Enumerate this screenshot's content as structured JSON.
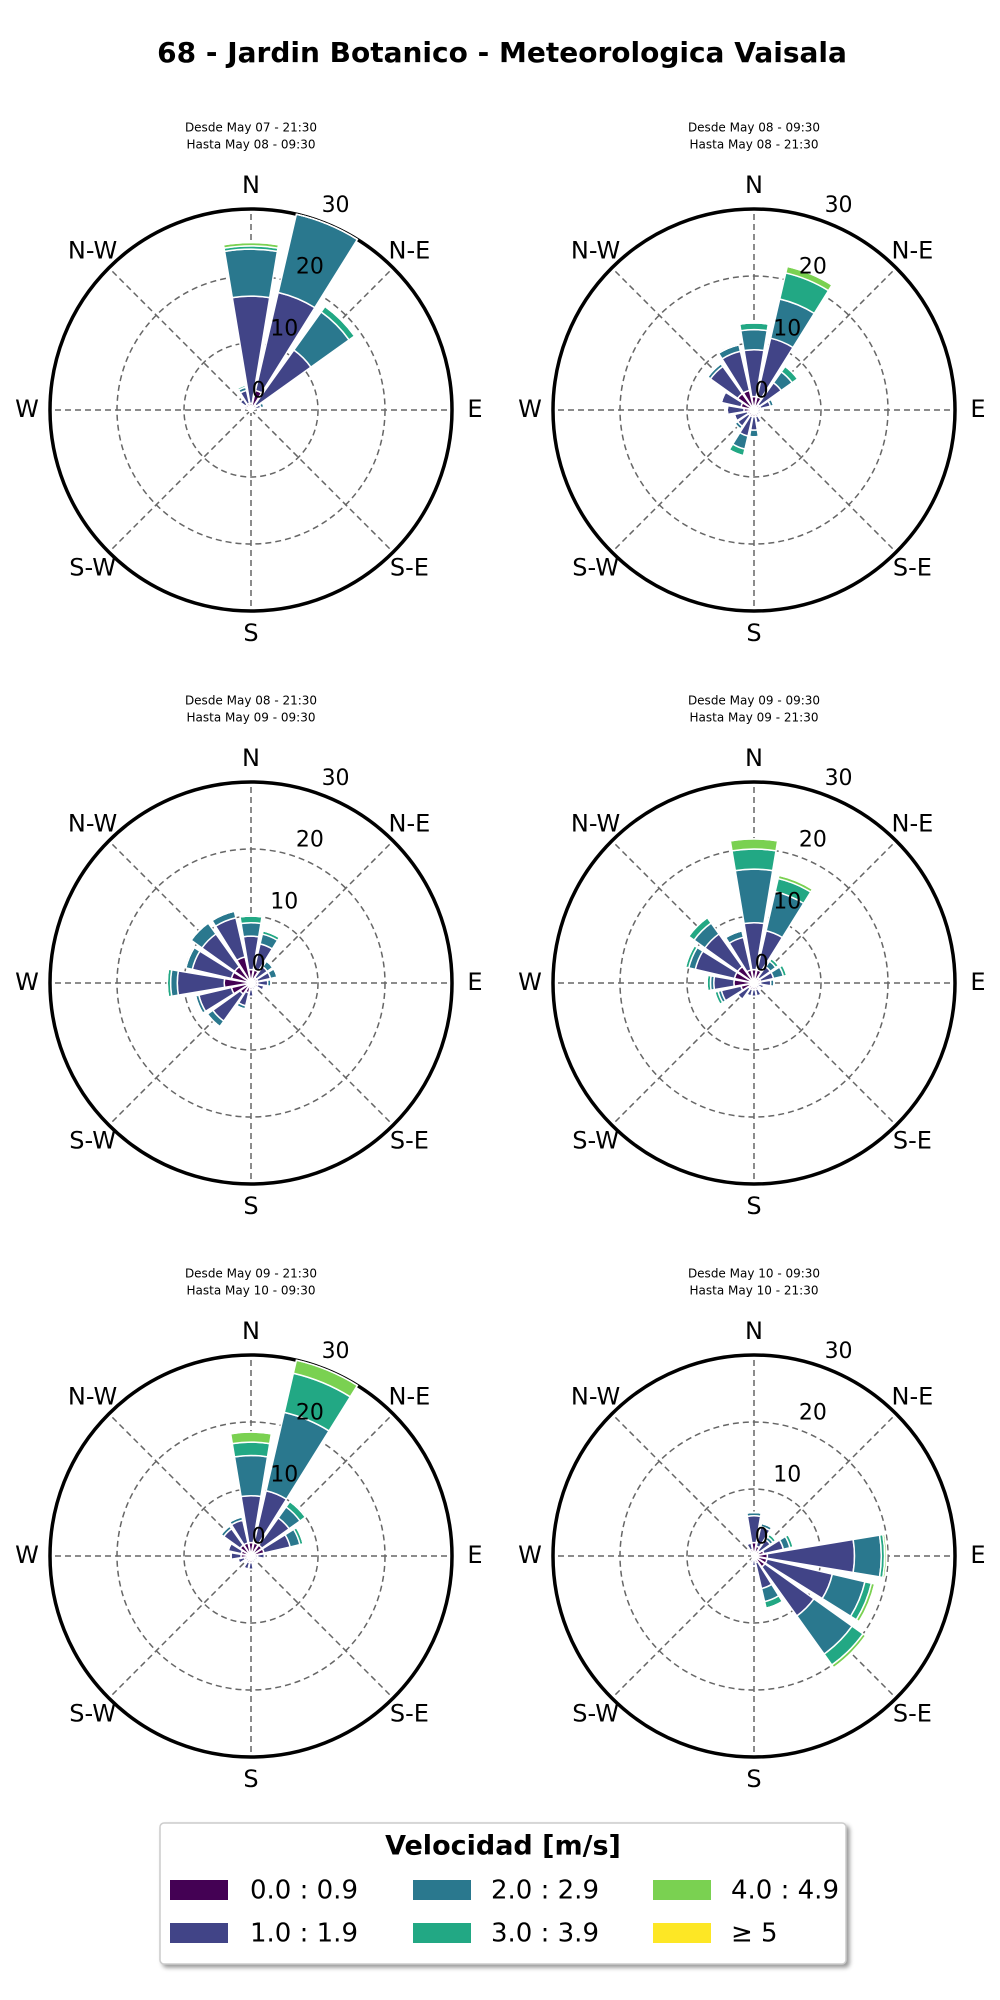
{
  "title": "68 - Jardin Botanico - Meteorologica Vaisala",
  "legend": {
    "title": "Velocidad [m/s]",
    "items": [
      {
        "name": "0.0 : 0.9",
        "color": "#440154"
      },
      {
        "name": "1.0 : 1.9",
        "color": "#414487"
      },
      {
        "name": "2.0 : 2.9",
        "color": "#2a788e"
      },
      {
        "name": "3.0 : 3.9",
        "color": "#22a884"
      },
      {
        "name": "4.0 : 4.9",
        "color": "#7ad151"
      },
      {
        "name": "≥ 5",
        "color": "#fde725"
      }
    ]
  },
  "chart_data": [
    {
      "type": "windrose",
      "subtitle": [
        "Desde May 07 - 21:30",
        "Hasta May 08 - 09:30"
      ],
      "direction_labels": [
        "N",
        "N-E",
        "E",
        "S-E",
        "S",
        "S-W",
        "W",
        "N-W"
      ],
      "rlim": [
        0,
        30
      ],
      "rticks": [
        0,
        10,
        20,
        30
      ],
      "series": [
        {
          "values": [
            1,
            3,
            1,
            0.5,
            0.3,
            0.3,
            0.3,
            0.3,
            0.3,
            0.3,
            0.3,
            0.3,
            0.3,
            0.5,
            1,
            1
          ]
        },
        {
          "values": [
            16,
            15,
            10,
            1,
            0,
            0,
            0,
            0,
            0,
            0,
            0,
            0,
            0,
            0.5,
            1,
            2
          ]
        },
        {
          "values": [
            7,
            12,
            7,
            0.5,
            0,
            0,
            0,
            0,
            0,
            0,
            0,
            0,
            0,
            0,
            0,
            0.5
          ]
        },
        {
          "values": [
            0.5,
            0,
            1,
            0,
            0,
            0,
            0,
            0,
            0,
            0,
            0,
            0,
            0,
            0,
            0,
            0.3
          ]
        },
        {
          "values": [
            0.5,
            0,
            0,
            0,
            0,
            0,
            0,
            0,
            0,
            0,
            0,
            0,
            0,
            0,
            0,
            0
          ]
        },
        {
          "values": [
            0,
            0,
            0,
            0,
            0,
            0,
            0,
            0,
            0,
            0,
            0,
            0,
            0,
            0,
            0,
            0
          ]
        }
      ]
    },
    {
      "type": "windrose",
      "subtitle": [
        "Desde May 08 - 09:30",
        "Hasta May 08 - 21:30"
      ],
      "direction_labels": [
        "N",
        "N-E",
        "E",
        "S-E",
        "S",
        "S-W",
        "W",
        "N-W"
      ],
      "rlim": [
        0,
        30
      ],
      "rticks": [
        0,
        10,
        20,
        30
      ],
      "series": [
        {
          "values": [
            2,
            2,
            1,
            1,
            0.5,
            0.5,
            0.5,
            1,
            1,
            1,
            1,
            1,
            1.5,
            2,
            3,
            3
          ]
        },
        {
          "values": [
            7,
            9,
            4,
            1.5,
            0.5,
            0.5,
            0.5,
            1,
            2,
            3,
            2,
            2,
            2.5,
            3,
            5,
            6
          ]
        },
        {
          "values": [
            3,
            6,
            2,
            0.5,
            0,
            0,
            0,
            0,
            1,
            2,
            0.5,
            0,
            0,
            0,
            0.5,
            1
          ]
        },
        {
          "values": [
            1,
            4,
            1,
            0,
            0,
            0,
            0,
            0,
            0,
            1,
            0,
            0,
            0,
            0,
            0,
            0
          ]
        },
        {
          "values": [
            0,
            1,
            0,
            0,
            0,
            0,
            0,
            0,
            0,
            0,
            0,
            0,
            0,
            0,
            0,
            0
          ]
        },
        {
          "values": [
            0,
            0,
            0,
            0,
            0,
            0,
            0,
            0,
            0,
            0,
            0,
            0,
            0,
            0,
            0,
            0
          ]
        }
      ]
    },
    {
      "type": "windrose",
      "subtitle": [
        "Desde May 08 - 21:30",
        "Hasta May 09 - 09:30"
      ],
      "direction_labels": [
        "N",
        "N-E",
        "E",
        "S-E",
        "S",
        "S-W",
        "W",
        "N-W"
      ],
      "rlim": [
        0,
        30
      ],
      "rticks": [
        0,
        10,
        20,
        30
      ],
      "series": [
        {
          "values": [
            2,
            2,
            1,
            1,
            1,
            1,
            0.5,
            0.5,
            1,
            1.5,
            2,
            3,
            4,
            3,
            3,
            4
          ]
        },
        {
          "values": [
            5,
            4,
            2,
            2,
            1.5,
            1,
            0.5,
            0.5,
            1,
            2,
            5,
            5,
            7,
            6,
            6,
            6
          ]
        },
        {
          "values": [
            2,
            1.5,
            1,
            1,
            0.5,
            0,
            0,
            0,
            0,
            0.5,
            1,
            0.5,
            1,
            1,
            2,
            1
          ]
        },
        {
          "values": [
            1,
            0.5,
            0,
            0,
            0,
            0,
            0,
            0,
            0,
            0,
            0,
            0,
            0.5,
            0,
            0,
            0
          ]
        },
        {
          "values": [
            0,
            0,
            0,
            0,
            0,
            0,
            0,
            0,
            0,
            0,
            0,
            0,
            0,
            0,
            0,
            0
          ]
        },
        {
          "values": [
            0,
            0,
            0,
            0,
            0,
            0,
            0,
            0,
            0,
            0,
            0,
            0,
            0,
            0,
            0,
            0
          ]
        }
      ]
    },
    {
      "type": "windrose",
      "subtitle": [
        "Desde May 09 - 09:30",
        "Hasta May 09 - 21:30"
      ],
      "direction_labels": [
        "N",
        "N-E",
        "E",
        "S-E",
        "S",
        "S-W",
        "W",
        "N-W"
      ],
      "rlim": [
        0,
        30
      ],
      "rticks": [
        0,
        10,
        20,
        30
      ],
      "series": [
        {
          "values": [
            2,
            2,
            1,
            1,
            1,
            0.5,
            0.5,
            1,
            1,
            1,
            1,
            2,
            3,
            3,
            3,
            2
          ]
        },
        {
          "values": [
            7,
            6,
            2,
            2,
            1.5,
            1,
            0.5,
            1,
            1,
            1,
            2,
            3,
            3,
            6,
            6,
            5
          ]
        },
        {
          "values": [
            8,
            6,
            1,
            1.5,
            0.5,
            0,
            0,
            0,
            0,
            0,
            0,
            0.5,
            0.5,
            1,
            2,
            1
          ]
        },
        {
          "values": [
            3,
            2,
            0.5,
            0.5,
            0,
            0,
            0,
            0,
            0,
            0,
            0,
            0.5,
            0.5,
            0.5,
            1,
            0
          ]
        },
        {
          "values": [
            1.5,
            0.5,
            0,
            0,
            0,
            0,
            0,
            0,
            0,
            0,
            0,
            0,
            0,
            0,
            0,
            0
          ]
        },
        {
          "values": [
            0,
            0,
            0,
            0,
            0,
            0,
            0,
            0,
            0,
            0,
            0,
            0,
            0,
            0,
            0,
            0
          ]
        }
      ]
    },
    {
      "type": "windrose",
      "subtitle": [
        "Desde May 09 - 21:30",
        "Hasta May 10 - 09:30"
      ],
      "direction_labels": [
        "N",
        "N-E",
        "E",
        "S-E",
        "S",
        "S-W",
        "W",
        "N-W"
      ],
      "rlim": [
        0,
        30
      ],
      "rticks": [
        0,
        10,
        20,
        30
      ],
      "series": [
        {
          "values": [
            2,
            2,
            2,
            2,
            1,
            0.5,
            0.5,
            0.5,
            1,
            1,
            0.5,
            1,
            1.5,
            1.5,
            2,
            2
          ]
        },
        {
          "values": [
            7,
            8,
            5,
            4,
            1,
            0.5,
            0.5,
            0.5,
            1,
            1,
            0.5,
            1,
            1.5,
            2,
            3,
            3.5
          ]
        },
        {
          "values": [
            6,
            12,
            2,
            1.5,
            0,
            0,
            0,
            0,
            0,
            0,
            0,
            0,
            0,
            0,
            0.5,
            0.5
          ]
        },
        {
          "values": [
            2,
            6,
            1,
            0.5,
            0,
            0,
            0,
            0,
            0,
            0,
            0,
            0,
            0,
            0,
            0,
            0
          ]
        },
        {
          "values": [
            1.5,
            2,
            0,
            0,
            0,
            0,
            0,
            0,
            0,
            0,
            0,
            0,
            0,
            0,
            0,
            0
          ]
        },
        {
          "values": [
            0,
            0,
            0,
            0,
            0,
            0,
            0,
            0,
            0,
            0,
            0,
            0,
            0,
            0,
            0,
            0
          ]
        }
      ]
    },
    {
      "type": "windrose",
      "subtitle": [
        "Desde May 10 - 09:30",
        "Hasta May 10 - 21:30"
      ],
      "direction_labels": [
        "N",
        "N-E",
        "E",
        "S-E",
        "S",
        "S-W",
        "W",
        "N-W"
      ],
      "rlim": [
        0,
        30
      ],
      "rticks": [
        0,
        10,
        20,
        30
      ],
      "series": [
        {
          "values": [
            2,
            1.5,
            1,
            1.5,
            2,
            2,
            2,
            1,
            0.5,
            0.5,
            0.3,
            0.3,
            0.3,
            0.3,
            0.5,
            1
          ]
        },
        {
          "values": [
            4,
            3,
            2,
            3,
            13,
            10,
            9,
            4,
            1,
            0.5,
            0,
            0,
            0,
            0,
            0.5,
            1
          ]
        },
        {
          "values": [
            0.5,
            0.5,
            0.5,
            1,
            4,
            5,
            7,
            2,
            0,
            0,
            0,
            0,
            0,
            0,
            0,
            0
          ]
        },
        {
          "values": [
            0,
            0,
            0.5,
            0.5,
            0.5,
            1,
            2,
            1,
            0,
            0,
            0,
            0,
            0,
            0,
            0,
            0
          ]
        },
        {
          "values": [
            0,
            0,
            0,
            0,
            0.3,
            0.5,
            0.5,
            0,
            0,
            0,
            0,
            0,
            0,
            0,
            0,
            0
          ]
        },
        {
          "values": [
            0,
            0,
            0,
            0,
            0,
            0,
            0,
            0,
            0,
            0,
            0,
            0,
            0,
            0,
            0,
            0
          ]
        }
      ]
    }
  ]
}
